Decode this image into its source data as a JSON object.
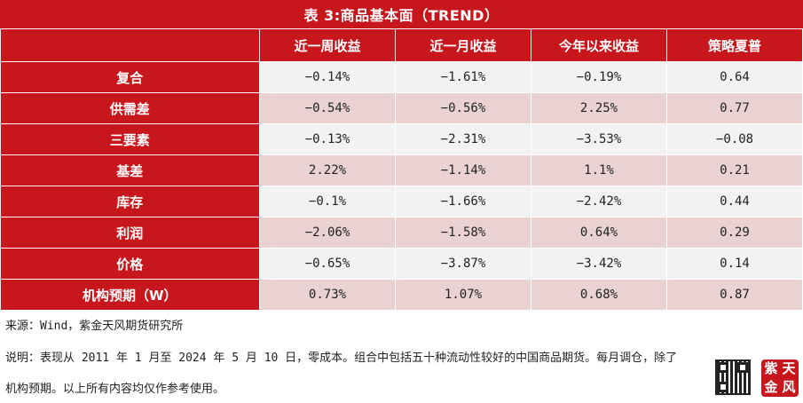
{
  "title": "表 3:商品基本面（TREND）",
  "table": {
    "headers": [
      "",
      "近一周收益",
      "近一月收益",
      "今年以来收益",
      "策略夏普"
    ],
    "rows": [
      {
        "label": "复合",
        "values": [
          "−0.14%",
          "−1.61%",
          "−0.19%",
          "0.64"
        ]
      },
      {
        "label": "供需差",
        "values": [
          "−0.54%",
          "−0.56%",
          "2.25%",
          "0.77"
        ]
      },
      {
        "label": "三要素",
        "values": [
          "−0.13%",
          "−2.31%",
          "−3.53%",
          "−0.08"
        ]
      },
      {
        "label": "基差",
        "values": [
          "2.22%",
          "−1.14%",
          "1.1%",
          "0.21"
        ]
      },
      {
        "label": "库存",
        "values": [
          "−0.1%",
          "−1.66%",
          "−2.42%",
          "0.44"
        ]
      },
      {
        "label": "利润",
        "values": [
          "−2.06%",
          "−1.58%",
          "0.64%",
          "0.29"
        ]
      },
      {
        "label": "价格",
        "values": [
          "−0.65%",
          "−3.87%",
          "−3.42%",
          "0.14"
        ]
      },
      {
        "label": "机构预期（W）",
        "values": [
          "0.73%",
          "1.07%",
          "0.68%",
          "0.87"
        ]
      }
    ]
  },
  "notes": {
    "source": "来源：Wind，紫金天风期货研究所",
    "line1": "说明：表现从 2011 年 1 月至 2024 年 5 月 10 日，零成本。组合中包括五十种流动性较好的中国商品期货。每月调仓，除了",
    "line2": "机构预期。以上所有内容均仅作参考使用。"
  },
  "logo": {
    "chars": [
      "紫",
      "天",
      "金",
      "风"
    ],
    "color": "#c8161d"
  },
  "colors": {
    "header_red": "#c8161d",
    "row_gray": "#f2f2f2",
    "row_pink": "#ead2d2"
  }
}
